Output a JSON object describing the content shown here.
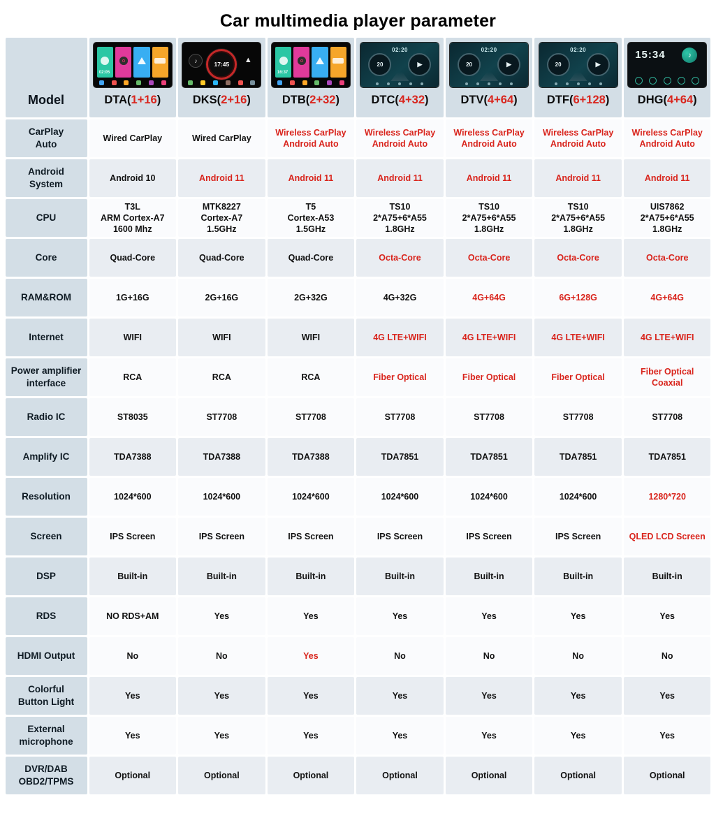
{
  "title": "Car multimedia player parameter",
  "colors": {
    "accent_red": "#d9251d",
    "label_bg": "#d3dee6"
  },
  "table": {
    "model_label": "Model",
    "columns": [
      {
        "name": "DTA",
        "spec": "1+16",
        "thumb": "launcher",
        "thumb_time": "02:05"
      },
      {
        "name": "DKS",
        "spec": "2+16",
        "thumb": "gauge",
        "thumb_time": "17:45"
      },
      {
        "name": "DTB",
        "spec": "2+32",
        "thumb": "launcher",
        "thumb_time": "16:37"
      },
      {
        "name": "DTC",
        "spec": "4+32",
        "thumb": "dual",
        "thumb_time": "02:20"
      },
      {
        "name": "DTV",
        "spec": "4+64",
        "thumb": "dual",
        "thumb_time": "02:20"
      },
      {
        "name": "DTF",
        "spec": "6+128",
        "thumb": "dual",
        "thumb_time": "02:20"
      },
      {
        "name": "DHG",
        "spec": "4+64",
        "thumb": "clock",
        "thumb_time": "15:34"
      }
    ],
    "rows": [
      {
        "label": "CarPlay\nAuto",
        "cells": [
          {
            "text": "Wired CarPlay"
          },
          {
            "text": "Wired CarPlay"
          },
          {
            "text": "Wireless CarPlay\nAndroid Auto",
            "red": true
          },
          {
            "text": "Wireless CarPlay\nAndroid Auto",
            "red": true
          },
          {
            "text": "Wireless CarPlay\nAndroid Auto",
            "red": true
          },
          {
            "text": "Wireless CarPlay\nAndroid Auto",
            "red": true
          },
          {
            "text": "Wireless CarPlay\nAndroid Auto",
            "red": true
          }
        ]
      },
      {
        "label": "Android\nSystem",
        "cells": [
          {
            "text": "Android 10"
          },
          {
            "text": "Android 11",
            "red": true
          },
          {
            "text": "Android 11",
            "red": true
          },
          {
            "text": "Android 11",
            "red": true
          },
          {
            "text": "Android 11",
            "red": true
          },
          {
            "text": "Android 11",
            "red": true
          },
          {
            "text": "Android 11",
            "red": true
          }
        ]
      },
      {
        "label": "CPU",
        "cells": [
          {
            "text": "T3L\nARM Cortex-A7\n1600 Mhz"
          },
          {
            "text": "MTK8227\nCortex-A7\n1.5GHz"
          },
          {
            "text": "T5\nCortex-A53\n1.5GHz"
          },
          {
            "text": "TS10\n2*A75+6*A55\n1.8GHz"
          },
          {
            "text": "TS10\n2*A75+6*A55\n1.8GHz"
          },
          {
            "text": "TS10\n2*A75+6*A55\n1.8GHz"
          },
          {
            "text": "UIS7862\n2*A75+6*A55\n1.8GHz"
          }
        ]
      },
      {
        "label": "Core",
        "cells": [
          {
            "text": "Quad-Core"
          },
          {
            "text": "Quad-Core"
          },
          {
            "text": "Quad-Core"
          },
          {
            "text": "Octa-Core",
            "red": true
          },
          {
            "text": "Octa-Core",
            "red": true
          },
          {
            "text": "Octa-Core",
            "red": true
          },
          {
            "text": "Octa-Core",
            "red": true
          }
        ]
      },
      {
        "label": "RAM&ROM",
        "cells": [
          {
            "text": "1G+16G"
          },
          {
            "text": "2G+16G"
          },
          {
            "text": "2G+32G"
          },
          {
            "text": "4G+32G"
          },
          {
            "text": "4G+64G",
            "red": true
          },
          {
            "text": "6G+128G",
            "red": true
          },
          {
            "text": "4G+64G",
            "red": true
          }
        ]
      },
      {
        "label": "Internet",
        "cells": [
          {
            "text": "WIFI"
          },
          {
            "text": "WIFI"
          },
          {
            "text": "WIFI"
          },
          {
            "text": "4G LTE+WIFI",
            "red": true
          },
          {
            "text": "4G LTE+WIFI",
            "red": true
          },
          {
            "text": "4G LTE+WIFI",
            "red": true
          },
          {
            "text": "4G LTE+WIFI",
            "red": true
          }
        ]
      },
      {
        "label": "Power amplifier\ninterface",
        "cells": [
          {
            "text": "RCA"
          },
          {
            "text": "RCA"
          },
          {
            "text": "RCA"
          },
          {
            "text": "Fiber Optical",
            "red": true
          },
          {
            "text": "Fiber Optical",
            "red": true
          },
          {
            "text": "Fiber Optical",
            "red": true
          },
          {
            "text": "Fiber Optical\nCoaxial",
            "red": true
          }
        ]
      },
      {
        "label": "Radio IC",
        "cells": [
          {
            "text": "ST8035"
          },
          {
            "text": "ST7708"
          },
          {
            "text": "ST7708"
          },
          {
            "text": "ST7708"
          },
          {
            "text": "ST7708"
          },
          {
            "text": "ST7708"
          },
          {
            "text": "ST7708"
          }
        ]
      },
      {
        "label": "Amplify IC",
        "cells": [
          {
            "text": "TDA7388"
          },
          {
            "text": "TDA7388"
          },
          {
            "text": "TDA7388"
          },
          {
            "text": "TDA7851"
          },
          {
            "text": "TDA7851"
          },
          {
            "text": "TDA7851"
          },
          {
            "text": "TDA7851"
          }
        ]
      },
      {
        "label": "Resolution",
        "cells": [
          {
            "text": "1024*600"
          },
          {
            "text": "1024*600"
          },
          {
            "text": "1024*600"
          },
          {
            "text": "1024*600"
          },
          {
            "text": "1024*600"
          },
          {
            "text": "1024*600"
          },
          {
            "text": "1280*720",
            "red": true
          }
        ]
      },
      {
        "label": "Screen",
        "cells": [
          {
            "text": "IPS Screen"
          },
          {
            "text": "IPS Screen"
          },
          {
            "text": "IPS Screen"
          },
          {
            "text": "IPS Screen"
          },
          {
            "text": "IPS Screen"
          },
          {
            "text": "IPS Screen"
          },
          {
            "text": "QLED LCD Screen",
            "red": true
          }
        ]
      },
      {
        "label": "DSP",
        "cells": [
          {
            "text": "Built-in"
          },
          {
            "text": "Built-in"
          },
          {
            "text": "Built-in"
          },
          {
            "text": "Built-in"
          },
          {
            "text": "Built-in"
          },
          {
            "text": "Built-in"
          },
          {
            "text": "Built-in"
          }
        ]
      },
      {
        "label": "RDS",
        "cells": [
          {
            "text": "NO RDS+AM"
          },
          {
            "text": "Yes"
          },
          {
            "text": "Yes"
          },
          {
            "text": "Yes"
          },
          {
            "text": "Yes"
          },
          {
            "text": "Yes"
          },
          {
            "text": "Yes"
          }
        ]
      },
      {
        "label": "HDMI Output",
        "cells": [
          {
            "text": "No"
          },
          {
            "text": "No"
          },
          {
            "text": "Yes",
            "red": true
          },
          {
            "text": "No"
          },
          {
            "text": "No"
          },
          {
            "text": "No"
          },
          {
            "text": "No"
          }
        ]
      },
      {
        "label": "Colorful\nButton Light",
        "cells": [
          {
            "text": "Yes"
          },
          {
            "text": "Yes"
          },
          {
            "text": "Yes"
          },
          {
            "text": "Yes"
          },
          {
            "text": "Yes"
          },
          {
            "text": "Yes"
          },
          {
            "text": "Yes"
          }
        ]
      },
      {
        "label": "External\nmicrophone",
        "cells": [
          {
            "text": "Yes"
          },
          {
            "text": "Yes"
          },
          {
            "text": "Yes"
          },
          {
            "text": "Yes"
          },
          {
            "text": "Yes"
          },
          {
            "text": "Yes"
          },
          {
            "text": "Yes"
          }
        ]
      },
      {
        "label": "DVR/DAB\nOBD2/TPMS",
        "cells": [
          {
            "text": "Optional"
          },
          {
            "text": "Optional"
          },
          {
            "text": "Optional"
          },
          {
            "text": "Optional"
          },
          {
            "text": "Optional"
          },
          {
            "text": "Optional"
          },
          {
            "text": "Optional"
          }
        ]
      }
    ]
  }
}
